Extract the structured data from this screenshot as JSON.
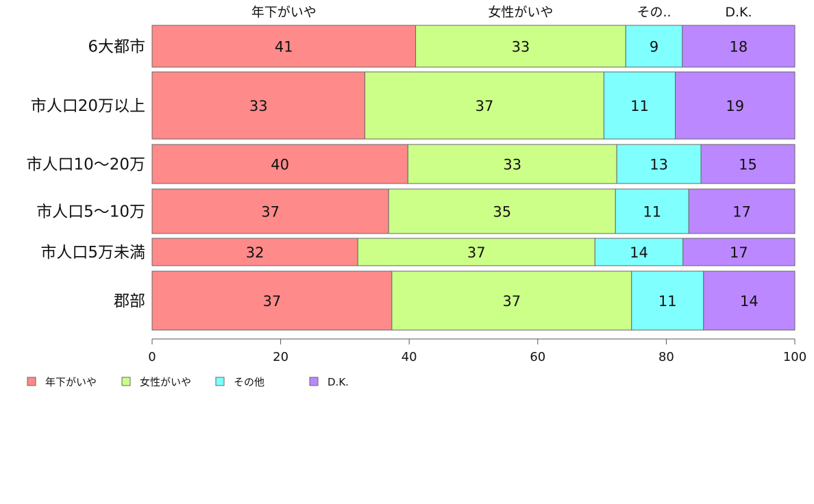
{
  "chart_data": {
    "type": "bar",
    "orientation": "horizontal",
    "stacked": true,
    "categories": [
      "6大都市",
      "市人口20万以上",
      "市人口10〜20万",
      "市人口5〜10万",
      "市人口5万未満",
      "郡部"
    ],
    "series": [
      {
        "name": "年下がいや",
        "values": [
          41,
          33,
          40,
          37,
          32,
          37
        ]
      },
      {
        "name": "女性がいや",
        "values": [
          33,
          37,
          33,
          35,
          37,
          37
        ]
      },
      {
        "name": "その他",
        "values": [
          9,
          11,
          13,
          11,
          14,
          11
        ]
      },
      {
        "name": "D.K.",
        "values": [
          18,
          19,
          15,
          17,
          17,
          14
        ]
      }
    ],
    "plotted_shares": [
      [
        41.0,
        32.7,
        8.8,
        17.5
      ],
      [
        33.1,
        37.2,
        11.1,
        18.6
      ],
      [
        39.8,
        32.5,
        13.1,
        14.6
      ],
      [
        36.8,
        35.3,
        11.4,
        16.5
      ],
      [
        32.0,
        36.9,
        13.7,
        17.4
      ],
      [
        37.3,
        37.3,
        11.2,
        14.2
      ]
    ],
    "top_labels": [
      "年下がいや",
      "女性がいや",
      "その..",
      "D.K."
    ],
    "xlim": [
      0,
      100
    ],
    "xticks": [
      "0",
      "20",
      "40",
      "60",
      "80",
      "100"
    ],
    "colors": [
      "#ff8a8a",
      "#ccff88",
      "#80ffff",
      "#bb88ff"
    ],
    "legend": {
      "position": "bottom-left",
      "entries": [
        "年下がいや",
        "女性がいや",
        "その他",
        "D.K."
      ]
    },
    "grid": false
  }
}
